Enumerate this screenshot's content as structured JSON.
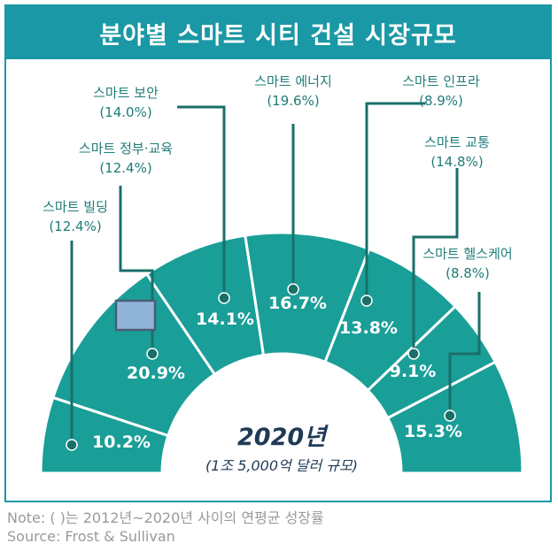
{
  "title": "분야별 스마트 시티 건설 시장규모",
  "chart_data": {
    "type": "pie",
    "shape": "half-donut",
    "center_label": "2020년",
    "center_sublabel": "(1조 5,000억 달러 규모)",
    "segments": [
      {
        "name": "스마트 빌딩",
        "value": 10.2,
        "value_label": "10.2%",
        "growth": "(12.4%)"
      },
      {
        "name": "스마트 정부·교육",
        "value": 20.9,
        "value_label": "20.9%",
        "growth": "(12.4%)"
      },
      {
        "name": "스마트 보안",
        "value": 14.1,
        "value_label": "14.1%",
        "growth": "(14.0%)"
      },
      {
        "name": "스마트 에너지",
        "value": 16.7,
        "value_label": "16.7%",
        "growth": "(19.6%)"
      },
      {
        "name": "스마트 인프라",
        "value": 13.8,
        "value_label": "13.8%",
        "growth": "(8.9%)"
      },
      {
        "name": "스마트 교통",
        "value": 9.1,
        "value_label": "9.1%",
        "growth": "(14.8%)"
      },
      {
        "name": "스마트 헬스케어",
        "value": 15.3,
        "value_label": "15.3%",
        "growth": "(8.8%)"
      }
    ]
  },
  "colors": {
    "segment": "#1a9e98",
    "leader": "#1b6f69",
    "label_text": "#1e7d78",
    "title_bg": "#1a98a5",
    "highlight": "#8fb4d8"
  },
  "footer": {
    "note": "Note: ( )는 2012년~2020년 사이의 연평균 성장률",
    "source": "Source: Frost & Sullivan"
  }
}
